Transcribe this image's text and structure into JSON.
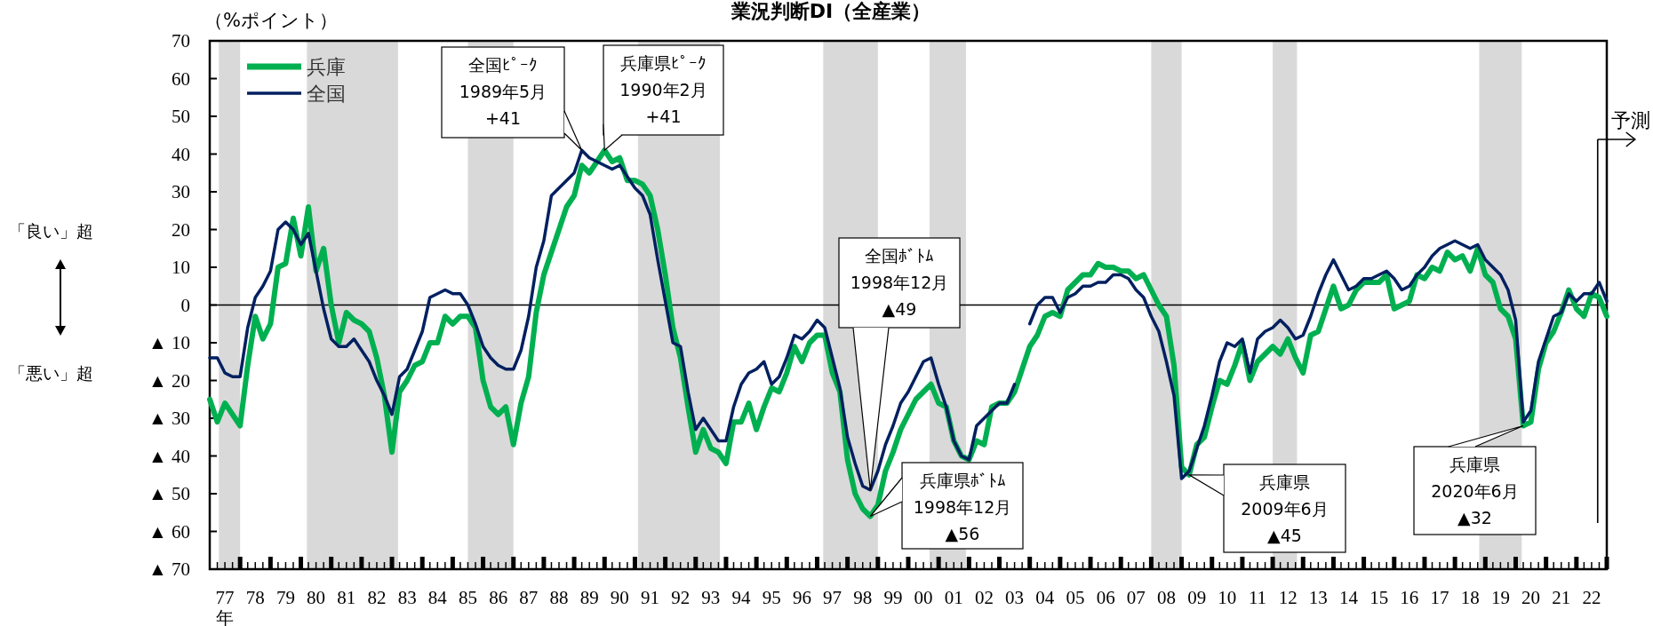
{
  "chart_data": {
    "type": "line",
    "title": "業況判断DI（全産業）",
    "ylabel": "（%ポイント）",
    "legend": "top left",
    "ylim": [
      -70,
      70
    ],
    "yticks": [
      70,
      60,
      50,
      40,
      30,
      20,
      10,
      0,
      {
        "value": -10,
        "label": "▲ 10"
      },
      {
        "value": -20,
        "label": "▲ 20"
      },
      {
        "value": -30,
        "label": "▲ 30"
      },
      {
        "value": -40,
        "label": "▲ 40"
      },
      {
        "value": -50,
        "label": "▲ 50"
      },
      {
        "value": -60,
        "label": "▲ 60"
      },
      {
        "value": -70,
        "label": "▲ 70"
      }
    ],
    "categories": [
      null,
      null,
      "77",
      null,
      null,
      null,
      "78",
      null,
      null,
      null,
      "79",
      null,
      null,
      null,
      "80",
      null,
      null,
      null,
      "81",
      null,
      null,
      null,
      "82",
      null,
      null,
      null,
      "83",
      null,
      null,
      null,
      "84",
      null,
      null,
      null,
      "85",
      null,
      null,
      null,
      "86",
      null,
      null,
      null,
      "87",
      null,
      null,
      null,
      "88",
      null,
      null,
      null,
      "89",
      null,
      null,
      null,
      "90",
      null,
      null,
      null,
      "91",
      null,
      null,
      null,
      "92",
      null,
      null,
      null,
      "93",
      null,
      null,
      null,
      "94",
      null,
      null,
      null,
      "95",
      null,
      null,
      null,
      "96",
      null,
      null,
      null,
      "97",
      null,
      null,
      null,
      "98",
      null,
      null,
      null,
      "99",
      null,
      null,
      null,
      "00",
      null,
      null,
      null,
      "01",
      null,
      null,
      null,
      "02",
      null,
      null,
      null,
      "03",
      null,
      null,
      null,
      "04",
      null,
      null,
      null,
      "05",
      null,
      null,
      null,
      "06",
      null,
      null,
      null,
      "07",
      null,
      null,
      null,
      "08",
      null,
      null,
      null,
      "09",
      null,
      null,
      null,
      "10",
      null,
      null,
      null,
      "11",
      null,
      null,
      null,
      "12",
      null,
      null,
      null,
      "13",
      null,
      null,
      null,
      "14",
      null,
      null,
      null,
      "15",
      null,
      null,
      null,
      "16",
      null,
      null,
      null,
      "17",
      null,
      null,
      null,
      "18",
      null,
      null,
      null,
      "19",
      null,
      null,
      null,
      "20",
      null,
      null,
      null,
      "21",
      null,
      null,
      null,
      "22",
      null,
      null
    ],
    "series": [
      {
        "name": "兵庫",
        "color": "#00b050",
        "values": [
          -25,
          -31,
          -26,
          -29,
          -32,
          -16,
          -3,
          -9,
          -5,
          10,
          11,
          23,
          13,
          26,
          9,
          15,
          0,
          -10,
          -2,
          -4,
          -5,
          -7,
          -14,
          -24,
          -39,
          -23,
          -20,
          -16,
          -15,
          -10,
          -10,
          -3,
          -5,
          -3,
          -3,
          -6,
          -20,
          -27,
          -29,
          -27,
          -37,
          -26,
          -19,
          -2,
          8,
          14,
          20,
          26,
          29,
          37,
          35,
          38,
          41,
          38,
          39,
          33,
          33,
          32,
          29,
          20,
          8,
          -6,
          -14,
          -27,
          -39,
          -33,
          -38,
          -39,
          -42,
          -31,
          -31,
          -26,
          -33,
          -27,
          -22,
          -23,
          -18,
          -11,
          -15,
          -10,
          -8,
          -8,
          -18,
          -23,
          -41,
          -50,
          -54,
          -56,
          -53,
          -44,
          -39,
          -33,
          -29,
          -25,
          -23,
          -21,
          -26,
          -27,
          -36,
          -40,
          -41,
          -36,
          -37,
          -27,
          -26,
          -26,
          -23,
          -17,
          -11,
          -8,
          -3,
          -2,
          -3,
          4,
          6,
          8,
          8,
          11,
          10,
          10,
          9,
          9,
          7,
          8,
          4,
          0,
          -3,
          -16,
          -43,
          -45,
          -37,
          -35,
          -27,
          -20,
          -21,
          -16,
          -10,
          -20,
          -15,
          -13,
          -11,
          -13,
          -9,
          -14,
          -18,
          -8,
          -7,
          -1,
          5,
          -1,
          0,
          4,
          6,
          6,
          6,
          8,
          -1,
          0,
          1,
          8,
          7,
          10,
          9,
          14,
          12,
          13,
          9,
          15,
          8,
          6,
          -1,
          -3,
          -9,
          -32,
          -31,
          -17,
          -10,
          -7,
          -2,
          4,
          -1,
          -3,
          3,
          2,
          -3
        ]
      },
      {
        "name": "全国",
        "color": "#002060",
        "values": [
          -14,
          -14,
          -18,
          -19,
          -19,
          -6,
          2,
          5,
          9,
          20,
          22,
          20,
          16,
          19,
          9,
          -1,
          -9,
          -11,
          -11,
          -9,
          -12,
          -15,
          -20,
          -24,
          -29,
          -19,
          -17,
          -12,
          -7,
          2,
          3,
          4,
          3,
          3,
          0,
          -5,
          -11,
          -14,
          -16,
          -17,
          -17,
          -12,
          -3,
          10,
          17,
          29,
          31,
          33,
          35,
          41,
          39,
          38,
          37,
          36,
          37,
          34,
          31,
          29,
          24,
          12,
          1,
          -10,
          -11,
          -23,
          -33,
          -30,
          -33,
          -36,
          -36,
          -27,
          -21,
          -18,
          -17,
          -15,
          -21,
          -19,
          -14,
          -8,
          -9,
          -7,
          -4,
          -6,
          -14,
          -22,
          -35,
          -42,
          -48,
          -49,
          -44,
          -37,
          -32,
          -26,
          -23,
          -19,
          -15,
          -14,
          -21,
          -27,
          -36,
          -40,
          -41,
          -32,
          -30,
          -28,
          -26,
          -26,
          -21,
          null,
          -5,
          0,
          2,
          2,
          -2,
          2,
          3,
          5,
          5,
          6,
          6,
          8,
          8,
          7,
          4,
          2,
          -3,
          -7,
          -15,
          -24,
          -46,
          -44,
          -38,
          -32,
          -24,
          -15,
          -10,
          -11,
          -9,
          -18,
          -9,
          -7,
          -6,
          -4,
          -6,
          -9,
          -8,
          -3,
          3,
          8,
          12,
          8,
          4,
          5,
          7,
          7,
          8,
          9,
          7,
          4,
          5,
          8,
          10,
          13,
          15,
          16,
          17,
          16,
          15,
          16,
          12,
          10,
          8,
          4,
          -4,
          -31,
          -28,
          -15,
          -9,
          -3,
          -2,
          3,
          1,
          3,
          3,
          6,
          1
        ]
      }
    ],
    "ref_lines": [
      {
        "axis": "y",
        "value": 0,
        "color": "#000000"
      }
    ],
    "annotations": [
      "「良い」超",
      "「悪い」超",
      "年",
      "予測",
      "全国ﾋﾟｰｸ\n1989年5月\n+41",
      "兵庫県ﾋﾟｰｸ\n1990年2月\n+41",
      "全国ﾎﾞﾄﾑ\n1998年12月\n▲49",
      "兵庫県ﾎﾞﾄﾑ\n1998年12月\n▲56",
      "兵庫県\n2009年6月\n▲45",
      "兵庫県\n2020年6月\n▲32"
    ]
  }
}
